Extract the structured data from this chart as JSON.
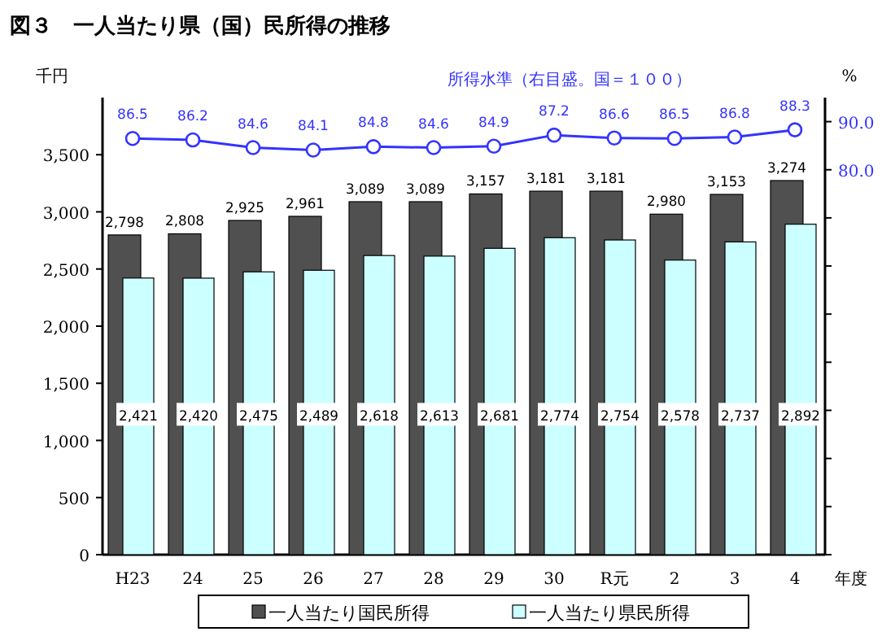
{
  "chart_data": {
    "type": "bar",
    "title": "図３　一人当たり県（国）民所得の推移",
    "xlabel": "年度",
    "ylabel": "千円",
    "y2label": "%",
    "categories": [
      "H23",
      "24",
      "25",
      "26",
      "27",
      "28",
      "29",
      "30",
      "R元",
      "2",
      "3",
      "4"
    ],
    "series": [
      {
        "name": "一人当たり国民所得",
        "color": "#505050",
        "values": [
          2798,
          2808,
          2925,
          2961,
          3089,
          3089,
          3157,
          3181,
          3181,
          2980,
          3153,
          3274
        ],
        "value_labels": [
          "2,798",
          "2,808",
          "2,925",
          "2,961",
          "3,089",
          "3,089",
          "3,157",
          "3,181",
          "3,181",
          "2,980",
          "3,153",
          "3,274"
        ]
      },
      {
        "name": "一人当たり県民所得",
        "color": "#ccffff",
        "values": [
          2421,
          2420,
          2475,
          2489,
          2618,
          2613,
          2681,
          2774,
          2754,
          2578,
          2737,
          2892
        ],
        "value_labels": [
          "2,421",
          "2,420",
          "2,475",
          "2,489",
          "2,618",
          "2,613",
          "2,681",
          "2,774",
          "2,754",
          "2,578",
          "2,737",
          "2,892"
        ]
      },
      {
        "name": "所得水準（右目盛。国＝１００）",
        "type": "line",
        "axis": "y2",
        "color": "#3333ff",
        "marker": "circle",
        "values": [
          86.5,
          86.2,
          84.6,
          84.1,
          84.8,
          84.6,
          84.9,
          87.2,
          86.6,
          86.5,
          86.8,
          88.3
        ]
      }
    ],
    "ylim": [
      0,
      4000
    ],
    "yticks": [
      0,
      500,
      {
        "value": 1000,
        "label": "1,000"
      },
      {
        "value": 1500,
        "label": "1,500"
      },
      {
        "value": 2000,
        "label": "2,000"
      },
      {
        "value": 2500,
        "label": "2,500"
      },
      {
        "value": 3000,
        "label": "3,000"
      },
      {
        "value": 3500,
        "label": "3,500"
      }
    ],
    "y2lim": [
      0,
      95
    ],
    "y2ticks": [
      {
        "value": 0,
        "label": null
      },
      {
        "value": 10,
        "label": null
      },
      {
        "value": 20,
        "label": null
      },
      {
        "value": 30,
        "label": null
      },
      {
        "value": 40,
        "label": null
      },
      {
        "value": 50,
        "label": null
      },
      {
        "value": 60,
        "label": null
      },
      {
        "value": 70,
        "label": null
      },
      {
        "value": 80,
        "label": "80.0"
      },
      {
        "value": 90,
        "label": "90.0"
      }
    ],
    "data_labels": true,
    "legend": "bottom",
    "grid": false
  }
}
